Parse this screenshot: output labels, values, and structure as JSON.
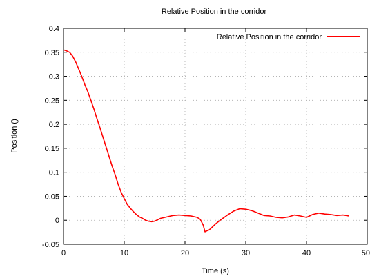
{
  "chart_data": {
    "type": "line",
    "title": "Relative Position in the corridor",
    "xlabel": "Time (s)",
    "ylabel": "Position ()",
    "xlim": [
      0,
      50
    ],
    "ylim": [
      -0.05,
      0.4
    ],
    "xticks": [
      0,
      10,
      20,
      30,
      40,
      50
    ],
    "yticks": [
      -0.05,
      0,
      0.05,
      0.1,
      0.15,
      0.2,
      0.25,
      0.3,
      0.35,
      0.4
    ],
    "xtick_labels": [
      "0",
      "10",
      "20",
      "30",
      "40",
      "50"
    ],
    "ytick_labels": [
      "-0.05",
      "0",
      "0.05",
      "0.1",
      "0.15",
      "0.2",
      "0.25",
      "0.3",
      "0.35",
      "0.4"
    ],
    "grid": true,
    "legend_position": "top-right",
    "series": [
      {
        "name": "Relative Position in the corridor",
        "color": "#ff0000",
        "x": [
          0,
          0.5,
          1,
          1.5,
          2,
          2.5,
          3,
          3.5,
          4,
          4.5,
          5,
          5.5,
          6,
          6.5,
          7,
          7.5,
          8,
          8.5,
          9,
          9.5,
          10,
          10.5,
          11,
          11.5,
          12,
          12.5,
          13,
          13.5,
          14,
          14.5,
          15,
          15.5,
          16,
          17,
          18,
          19,
          20,
          21,
          22,
          22.5,
          23,
          23.3,
          23.6,
          24,
          24.5,
          25,
          26,
          27,
          28,
          29,
          30,
          31,
          32,
          33,
          34,
          35,
          36,
          37,
          38,
          39,
          40,
          41,
          42,
          43,
          44,
          45,
          46,
          47
        ],
        "y": [
          0.355,
          0.353,
          0.35,
          0.342,
          0.33,
          0.315,
          0.3,
          0.283,
          0.268,
          0.25,
          0.232,
          0.212,
          0.193,
          0.173,
          0.153,
          0.133,
          0.113,
          0.095,
          0.075,
          0.058,
          0.045,
          0.033,
          0.025,
          0.018,
          0.012,
          0.007,
          0.004,
          0.0,
          -0.002,
          -0.003,
          -0.002,
          0.001,
          0.004,
          0.007,
          0.01,
          0.011,
          0.01,
          0.009,
          0.006,
          0.002,
          -0.01,
          -0.024,
          -0.022,
          -0.02,
          -0.014,
          -0.008,
          0.002,
          0.011,
          0.019,
          0.024,
          0.023,
          0.02,
          0.015,
          0.01,
          0.009,
          0.006,
          0.005,
          0.007,
          0.011,
          0.009,
          0.006,
          0.012,
          0.015,
          0.013,
          0.012,
          0.01,
          0.011,
          0.009
        ]
      }
    ]
  }
}
